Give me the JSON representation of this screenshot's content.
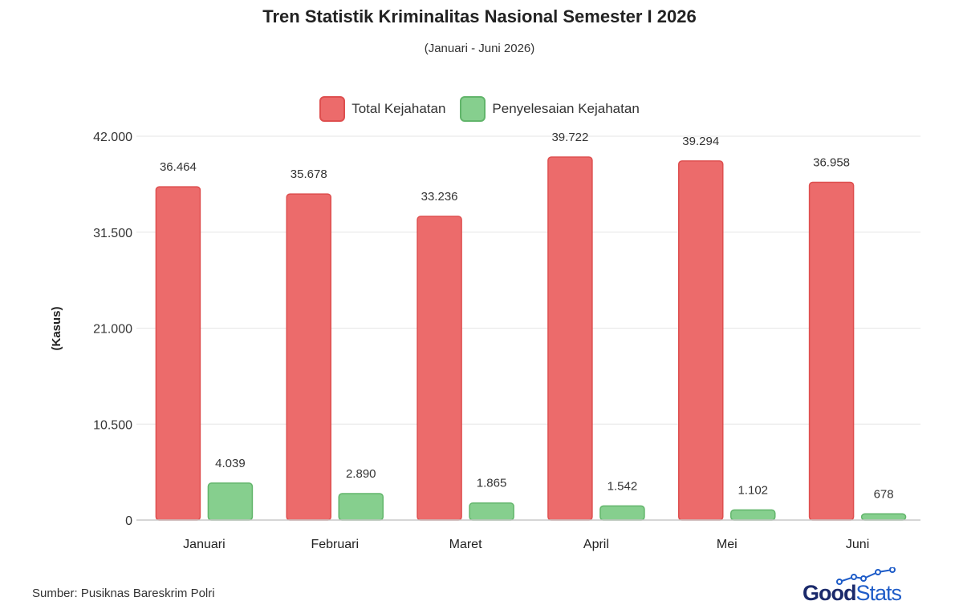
{
  "chart_data": {
    "type": "bar",
    "title": "Tren Statistik Kriminalitas Nasional Semester I 2026",
    "subtitle": "(Januari - Juni 2026)",
    "ylabel": "(Kasus)",
    "xlabel": "",
    "categories": [
      "Januari",
      "Februari",
      "Maret",
      "April",
      "Mei",
      "Juni"
    ],
    "series": [
      {
        "name": "Total Kejahatan",
        "values": [
          36464,
          35678,
          33236,
          39722,
          39294,
          36958
        ],
        "labels": [
          "36.464",
          "35.678",
          "33.236",
          "39.722",
          "39.294",
          "36.958"
        ],
        "color": "#ec6b6b",
        "stroke": "#de4f4f"
      },
      {
        "name": "Penyelesaian Kejahatan",
        "values": [
          4039,
          2890,
          1865,
          1542,
          1102,
          678
        ],
        "labels": [
          "4.039",
          "2.890",
          "1.865",
          "1.542",
          "1.102",
          "678"
        ],
        "color": "#86cf8e",
        "stroke": "#62b56b"
      }
    ],
    "ylim": [
      0,
      42000
    ],
    "yticks": [
      0,
      10500,
      21000,
      31500,
      42000
    ],
    "ytick_labels": [
      "0",
      "10.500",
      "21.000",
      "31.500",
      "42.000"
    ],
    "grid": true,
    "legend": "top-center"
  },
  "source": "Sumber: Pusiknas Bareskrim Polri",
  "brand": {
    "part1": "Good",
    "part2": "Stats"
  }
}
